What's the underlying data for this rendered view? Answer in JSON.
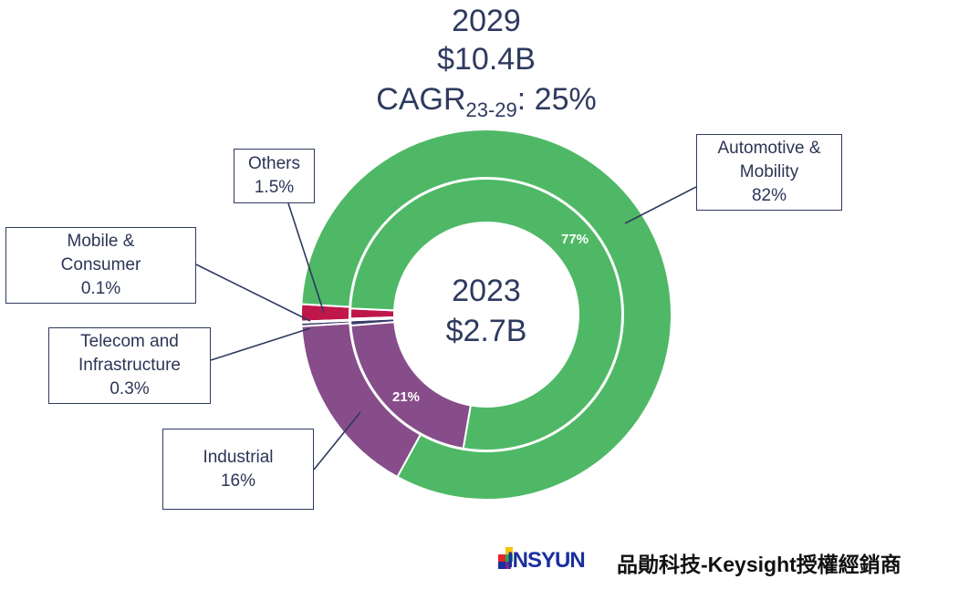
{
  "header": {
    "year": "2029",
    "total": "$10.4B",
    "cagr_prefix": "CAGR",
    "cagr_sub": "23-29",
    "cagr_suffix": ": 25%"
  },
  "center": {
    "year": "2023",
    "total": "$2.7B"
  },
  "chart_data": {
    "type": "pie",
    "inner_ring": {
      "label": "2023",
      "slices": [
        {
          "name": "Automotive & Mobility",
          "value": 77,
          "label": "77%"
        },
        {
          "name": "Industrial",
          "value": 21,
          "label": "21%"
        },
        {
          "name": "Telecom and Infrastructure",
          "value": 0.6
        },
        {
          "name": "Mobile & Consumer",
          "value": 0.2
        },
        {
          "name": "Others",
          "value": 1.2
        }
      ]
    },
    "outer_ring": {
      "label": "2029",
      "slices": [
        {
          "name": "Automotive & Mobility",
          "value": 82
        },
        {
          "name": "Industrial",
          "value": 16
        },
        {
          "name": "Telecom and Infrastructure",
          "value": 0.3
        },
        {
          "name": "Mobile & Consumer",
          "value": 0.1
        },
        {
          "name": "Others",
          "value": 1.5
        }
      ]
    },
    "colors": {
      "Automotive & Mobility": "#4fb866",
      "Industrial": "#874d8a",
      "Telecom and Infrastructure": "#3a3d6b",
      "Mobile & Consumer": "#1e2a5a",
      "Others": "#c0174a"
    }
  },
  "callouts": {
    "automotive": {
      "name": "Automotive &",
      "name2": "Mobility",
      "pct": "82%"
    },
    "others": {
      "name": "Others",
      "pct": "1.5%"
    },
    "mobile": {
      "name": "Mobile &",
      "name2": "Consumer",
      "pct": "0.1%"
    },
    "telecom": {
      "name": "Telecom and",
      "name2": "Infrastructure",
      "pct": "0.3%"
    },
    "industrial": {
      "name": "Industrial",
      "pct": "16%"
    }
  },
  "footer": {
    "logo_text": "INSYUN",
    "brand_text": "品勛科技-Keysight授權經銷商"
  }
}
